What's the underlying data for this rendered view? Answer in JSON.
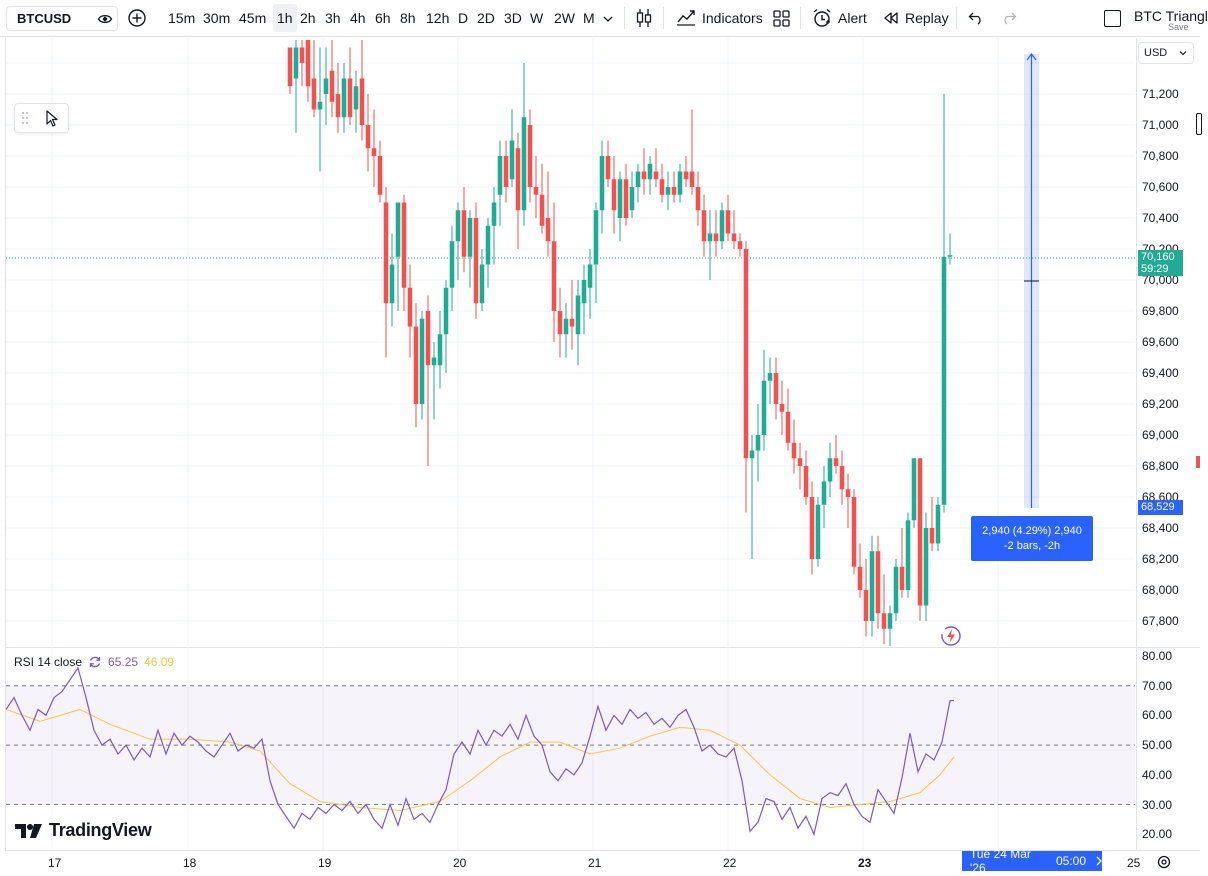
{
  "toolbar": {
    "symbol": "BTCUSD",
    "timeframes": [
      "15m",
      "30m",
      "45m",
      "1h",
      "2h",
      "3h",
      "4h",
      "6h",
      "8h",
      "12h",
      "D",
      "2D",
      "3D",
      "W",
      "2W",
      "M"
    ],
    "active_timeframe": "1h",
    "indicators_label": "Indicators",
    "alert_label": "Alert",
    "replay_label": "Replay",
    "layout_name": "BTC Triangl",
    "save_label": "Save"
  },
  "price_axis": {
    "currency": "USD",
    "labels": [
      "71,200",
      "71,000",
      "70,800",
      "70,600",
      "70,400",
      "70,200",
      "70,000",
      "69,800",
      "69,600",
      "69,400",
      "69,200",
      "69,000",
      "68,800",
      "68,600",
      "68,400",
      "68,200",
      "68,000",
      "67,800"
    ],
    "last_price": "70,160",
    "countdown": "59:29",
    "measure_start_price": "68,529"
  },
  "rsi_axis": {
    "labels": [
      "80.00",
      "70.00",
      "60.00",
      "50.00",
      "40.00",
      "30.00",
      "20.00"
    ]
  },
  "rsi_legend": {
    "name": "RSI 14 close",
    "rsi_value": "65.25",
    "ma_value": "46.09"
  },
  "time_axis": {
    "labels": [
      "17",
      "18",
      "19",
      "20",
      "21",
      "22",
      "23",
      "25"
    ],
    "crosshair_time": "Tue 24 Mar '26",
    "crosshair_hour": "05:00"
  },
  "measure": {
    "line1": "2,940 (4.29%) 2,940",
    "line2": "-2 bars, -2h"
  },
  "logo_text": "TradingView",
  "colors": {
    "up": "#22ab94",
    "down": "#ef5350",
    "accent": "#2962ff",
    "rsi": "#7e57c2",
    "rsi_ma": "#f5c842"
  }
}
